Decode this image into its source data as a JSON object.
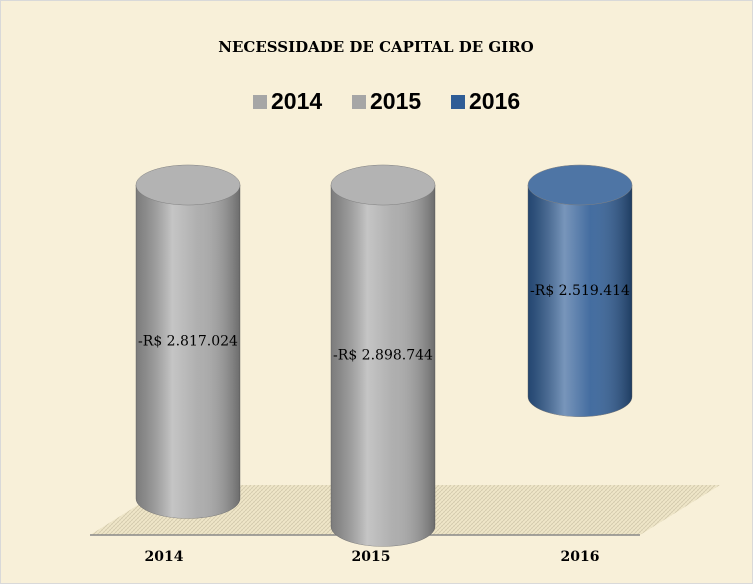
{
  "chart_data": {
    "type": "bar",
    "title": "NECESSIDADE DE CAPITAL DE GIRO",
    "categories": [
      "2014",
      "2015",
      "2016"
    ],
    "values": [
      -2817024,
      -2898744,
      -2519414
    ],
    "value_labels": [
      "-R$ 2.817.024",
      "-R$ 2.898.744",
      "-R$ 2.519.414"
    ],
    "colors": [
      "#a6a6a6",
      "#a6a6a6",
      "#2f5d96"
    ],
    "ylim": [
      -3000000,
      -1900000
    ],
    "legend": "top"
  }
}
